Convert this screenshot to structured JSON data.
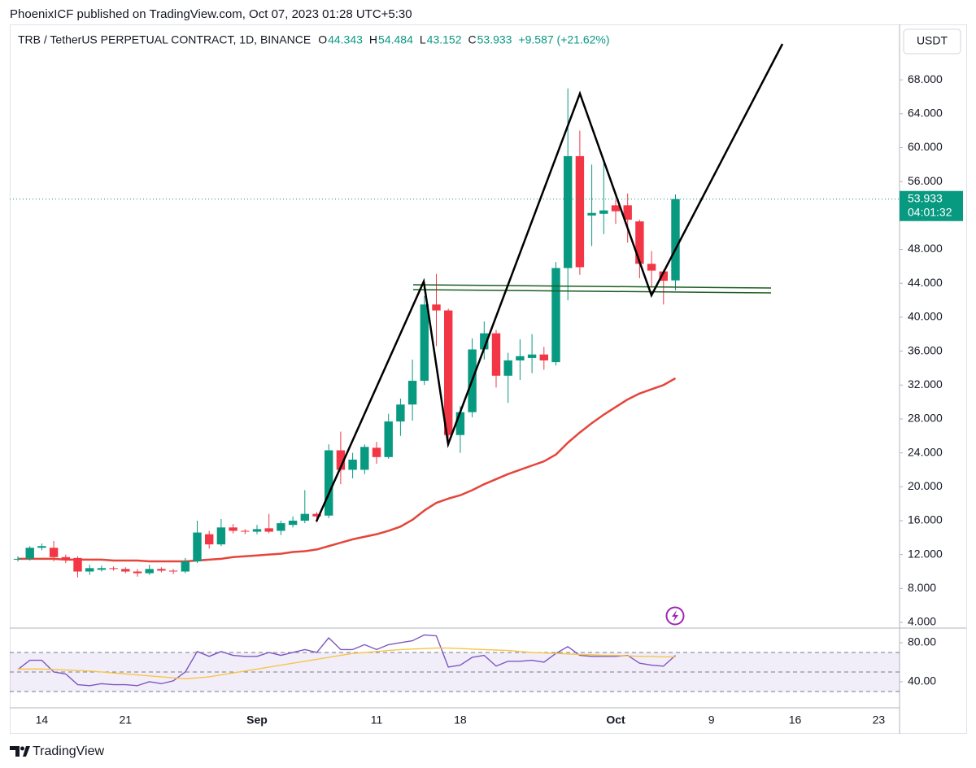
{
  "header": {
    "publisher": "PhoenixICF published on TradingView.com, Oct 07, 2023 01:28 UTC+5:30",
    "symbol": "TRB / TetherUS PERPETUAL CONTRACT, 1D, BINANCE",
    "ohlc_letters": [
      "O",
      "H",
      "L",
      "C"
    ],
    "change": "+9.587 (+21.62%)"
  },
  "chart_data": [
    {
      "type": "candlestick",
      "currency": "USDT",
      "countdown": "04:01:32",
      "up_color": "#089981",
      "down_color": "#f23645",
      "categories": [
        null,
        null,
        "14",
        null,
        null,
        null,
        null,
        null,
        null,
        "21",
        null,
        null,
        null,
        null,
        null,
        null,
        null,
        null,
        null,
        null,
        "Sep",
        null,
        null,
        null,
        null,
        null,
        null,
        null,
        null,
        null,
        "11",
        null,
        null,
        null,
        null,
        null,
        null,
        "18",
        null,
        null,
        null,
        null,
        null,
        null,
        null,
        null,
        null,
        null,
        null,
        null,
        "Oct",
        null,
        null,
        null,
        null,
        null,
        null,
        null,
        "9",
        null,
        null,
        null,
        null,
        null,
        null,
        "16",
        null,
        null,
        null,
        null,
        null,
        null,
        "23",
        null
      ],
      "open": [
        11.4,
        11.5,
        12.8,
        12.8,
        11.7,
        11.6,
        10.0,
        10.2,
        10.4,
        10.3,
        10.0,
        9.8,
        10.3,
        10.1,
        10.0,
        11.2,
        14.4,
        13.2,
        15.2,
        14.8,
        14.7,
        15.1,
        14.8,
        15.5,
        16.0,
        16.8,
        16.6,
        24.3,
        22.0,
        22.0,
        24.6,
        23.5,
        27.7,
        29.7,
        32.5,
        41.5,
        40.8,
        26.1,
        28.8,
        36.2,
        38.1,
        33.1,
        34.9,
        35.2,
        35.6,
        34.7,
        45.8,
        59.0,
        52.0,
        52.2,
        53.2,
        53.2,
        51.3,
        46.3,
        45.4,
        44.343,
        null,
        null,
        null,
        null,
        null,
        null,
        null,
        null,
        null,
        null,
        null,
        null,
        null,
        null,
        null,
        null,
        null,
        null
      ],
      "high": [
        11.8,
        13.0,
        13.3,
        13.6,
        12.0,
        11.8,
        10.8,
        10.7,
        10.6,
        10.5,
        10.3,
        10.8,
        10.5,
        10.3,
        11.6,
        16.0,
        14.8,
        16.2,
        15.6,
        15.0,
        15.5,
        16.8,
        16.0,
        16.5,
        19.6,
        17.0,
        25.0,
        26.5,
        24.0,
        25.0,
        25.3,
        28.6,
        30.4,
        35.0,
        42.5,
        45.1,
        41.0,
        29.5,
        37.5,
        39.5,
        38.5,
        35.8,
        37.4,
        38.0,
        36.5,
        46.5,
        67.0,
        62.0,
        58.0,
        58.5,
        53.8,
        54.6,
        51.5,
        47.8,
        45.6,
        54.484,
        null,
        null,
        null,
        null,
        null,
        null,
        null,
        null,
        null,
        null,
        null,
        null,
        null,
        null,
        null,
        null,
        null,
        null
      ],
      "low": [
        11.2,
        11.3,
        12.5,
        11.2,
        11.0,
        9.3,
        9.6,
        10.0,
        10.1,
        9.8,
        9.4,
        9.6,
        9.9,
        9.7,
        9.8,
        11.0,
        12.7,
        13.0,
        14.5,
        14.4,
        14.4,
        14.5,
        14.3,
        15.2,
        15.7,
        15.8,
        16.3,
        20.3,
        21.0,
        21.5,
        22.7,
        23.3,
        26.0,
        27.8,
        32.0,
        36.6,
        25.5,
        24.0,
        28.2,
        35.0,
        31.7,
        29.9,
        32.6,
        33.4,
        33.8,
        34.3,
        42.0,
        45.0,
        48.4,
        49.8,
        51.0,
        48.8,
        44.6,
        43.6,
        41.5,
        43.152,
        null,
        null,
        null,
        null,
        null,
        null,
        null,
        null,
        null,
        null,
        null,
        null,
        null,
        null,
        null,
        null,
        null,
        null
      ],
      "close": [
        11.5,
        12.8,
        13.0,
        11.7,
        11.4,
        10.0,
        10.4,
        10.4,
        10.3,
        10.0,
        9.8,
        10.3,
        10.1,
        10.0,
        11.2,
        14.6,
        13.2,
        15.2,
        14.8,
        14.7,
        15.0,
        14.7,
        15.7,
        16.0,
        16.8,
        16.5,
        24.3,
        22.0,
        23.2,
        24.7,
        23.5,
        27.7,
        29.7,
        32.5,
        41.5,
        40.8,
        26.1,
        28.8,
        36.2,
        38.1,
        33.1,
        34.9,
        35.4,
        35.6,
        34.9,
        45.8,
        59.0,
        45.9,
        52.3,
        52.6,
        52.5,
        51.5,
        46.3,
        45.5,
        44.3,
        53.933,
        null,
        null,
        null,
        null,
        null,
        null,
        null,
        null,
        null,
        null,
        null,
        null,
        null,
        null,
        null,
        null,
        null,
        null
      ],
      "moving_average": {
        "color": "#e5453a",
        "values": [
          11.5,
          11.5,
          11.5,
          11.5,
          11.4,
          11.4,
          11.4,
          11.4,
          11.3,
          11.3,
          11.3,
          11.2,
          11.2,
          11.2,
          11.2,
          11.3,
          11.4,
          11.5,
          11.7,
          11.8,
          11.9,
          12.0,
          12.1,
          12.3,
          12.4,
          12.6,
          13.0,
          13.4,
          13.8,
          14.1,
          14.4,
          14.8,
          15.3,
          16.1,
          17.2,
          18.1,
          18.6,
          19.0,
          19.6,
          20.3,
          20.9,
          21.5,
          22.0,
          22.5,
          23.0,
          23.8,
          25.2,
          26.4,
          27.5,
          28.5,
          29.4,
          30.3,
          31.0,
          31.5,
          32.0,
          32.8,
          null,
          null,
          null,
          null,
          null,
          null,
          null,
          null,
          null,
          null,
          null,
          null,
          null,
          null,
          null,
          null,
          null,
          null
        ]
      },
      "ylim": [
        3.33,
        74.54
      ],
      "yticks": [
        {
          "value": 4,
          "label": "4.000"
        },
        {
          "value": 8,
          "label": "8.000"
        },
        {
          "value": 12,
          "label": "12.000"
        },
        {
          "value": 16,
          "label": "16.000"
        },
        {
          "value": 20,
          "label": "20.000"
        },
        {
          "value": 24,
          "label": "24.000"
        },
        {
          "value": 28,
          "label": "28.000"
        },
        {
          "value": 32,
          "label": "32.000"
        },
        {
          "value": 36,
          "label": "36.000"
        },
        {
          "value": 40,
          "label": "40.000"
        },
        {
          "value": 44,
          "label": "44.000"
        },
        {
          "value": 48,
          "label": "48.000"
        },
        {
          "value": 52,
          "label": "52.000"
        },
        {
          "value": 56,
          "label": "56.000"
        },
        {
          "value": 60,
          "label": "60.000"
        },
        {
          "value": 64,
          "label": "64.000"
        },
        {
          "value": 68,
          "label": "68.000"
        }
      ]
    },
    {
      "type": "line",
      "series": [
        {
          "color": "#7e57c2",
          "values": [
            52.5,
            62,
            62,
            50,
            48,
            37,
            36,
            38,
            37,
            37,
            36,
            40,
            38,
            41,
            50,
            71,
            66,
            71,
            67,
            66,
            66,
            70,
            67,
            70,
            73,
            70,
            85,
            73,
            73,
            78,
            73,
            78,
            80,
            82,
            88,
            87,
            55,
            57,
            65,
            67,
            56,
            61,
            61,
            62,
            60,
            69,
            76,
            67,
            66,
            66,
            66,
            67,
            59,
            57,
            56,
            67,
            null,
            null,
            null,
            null,
            null,
            null,
            null,
            null,
            null,
            null,
            null,
            null,
            null,
            null,
            null,
            null,
            null,
            null
          ]
        },
        {
          "color": "#f7c549",
          "values": [
            53,
            53,
            53,
            52.5,
            52,
            51.5,
            51,
            50,
            49,
            48,
            47,
            46,
            45,
            44,
            43,
            44,
            45,
            47,
            49,
            51,
            53,
            55,
            57,
            59,
            61,
            63,
            65,
            67,
            69,
            70,
            71,
            72,
            73,
            73.5,
            74,
            74.5,
            74.5,
            74,
            73.5,
            73,
            72.5,
            72,
            71,
            70,
            69.5,
            69,
            68.5,
            68,
            67.5,
            67,
            67,
            66.5,
            66,
            66,
            65.5,
            65.5,
            null,
            null,
            null,
            null,
            null,
            null,
            null,
            null,
            null,
            null,
            null,
            null,
            null,
            null,
            null,
            null,
            null,
            null
          ]
        }
      ],
      "levels": [
        70,
        50,
        30
      ],
      "ylim": [
        13.3,
        95
      ],
      "yticks": [
        {
          "value": 40,
          "label": "40.00"
        },
        {
          "value": 80,
          "label": "80.00"
        }
      ]
    }
  ],
  "footer": {
    "brand": "TradingView"
  }
}
